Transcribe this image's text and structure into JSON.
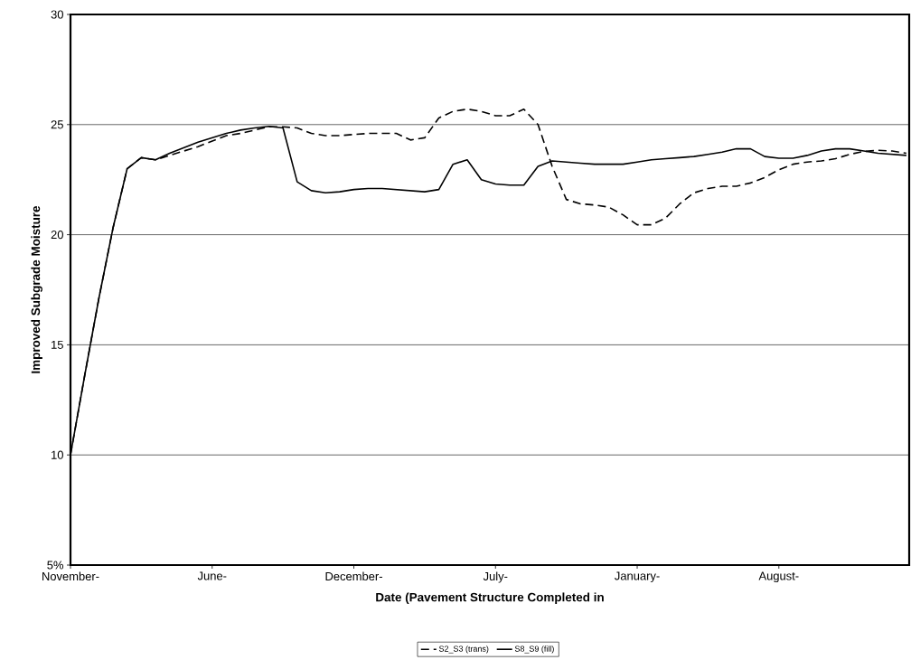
{
  "chart_data": {
    "type": "line",
    "xlabel": "Date (Pavement Structure Completed in",
    "ylabel": "Improved Subgrade Moisture",
    "categories": [
      "November-",
      null,
      null,
      null,
      null,
      null,
      null,
      null,
      null,
      null,
      "June-",
      null,
      null,
      null,
      null,
      null,
      null,
      null,
      null,
      null,
      "December-",
      null,
      null,
      null,
      null,
      null,
      null,
      null,
      null,
      null,
      "July-",
      null,
      null,
      null,
      null,
      null,
      null,
      null,
      null,
      null,
      "January-",
      null,
      null,
      null,
      null,
      null,
      null,
      null,
      null,
      null,
      "August-",
      null,
      null,
      null,
      null,
      null,
      null,
      null,
      null,
      null
    ],
    "ylim": [
      5,
      30
    ],
    "yticks": [
      {
        "value": 5,
        "label": "5%"
      },
      10,
      15,
      20,
      25,
      30
    ],
    "grid": "y",
    "legend": "bottom",
    "marker": "none",
    "series": [
      {
        "name": "S2_S3 (trans)",
        "color": "#000000",
        "line_style": "dashed",
        "values": [
          10,
          13.6,
          17.1,
          20.3,
          23.0,
          23.5,
          23.4,
          23.6,
          23.8,
          24.0,
          24.25,
          24.5,
          24.6,
          24.75,
          24.9,
          24.9,
          24.85,
          24.6,
          24.5,
          24.5,
          24.55,
          24.6,
          24.6,
          24.6,
          24.3,
          24.4,
          25.3,
          25.6,
          25.7,
          25.6,
          25.4,
          25.4,
          25.7,
          25.0,
          23.1,
          21.6,
          21.4,
          21.35,
          21.25,
          20.9,
          20.45,
          20.45,
          20.75,
          21.4,
          21.9,
          22.1,
          22.2,
          22.2,
          22.35,
          22.6,
          22.95,
          23.2,
          23.3,
          23.35,
          23.45,
          23.65,
          23.78,
          23.83,
          23.8,
          23.7
        ]
      },
      {
        "name": "S8_S9 (fill)",
        "color": "#000000",
        "line_style": "solid",
        "values": [
          10,
          13.6,
          17.1,
          20.3,
          23.0,
          23.5,
          23.4,
          23.7,
          23.95,
          24.2,
          24.4,
          24.6,
          24.75,
          24.85,
          24.92,
          24.85,
          22.4,
          22.0,
          21.9,
          21.95,
          22.05,
          22.1,
          22.1,
          22.05,
          22.0,
          21.95,
          22.05,
          23.2,
          23.4,
          22.5,
          22.3,
          22.25,
          22.25,
          23.1,
          23.35,
          23.3,
          23.25,
          23.2,
          23.2,
          23.2,
          23.3,
          23.4,
          23.45,
          23.5,
          23.55,
          23.65,
          23.75,
          23.9,
          23.9,
          23.55,
          23.47,
          23.47,
          23.6,
          23.8,
          23.9,
          23.9,
          23.8,
          23.7,
          23.65,
          23.6
        ]
      }
    ]
  }
}
